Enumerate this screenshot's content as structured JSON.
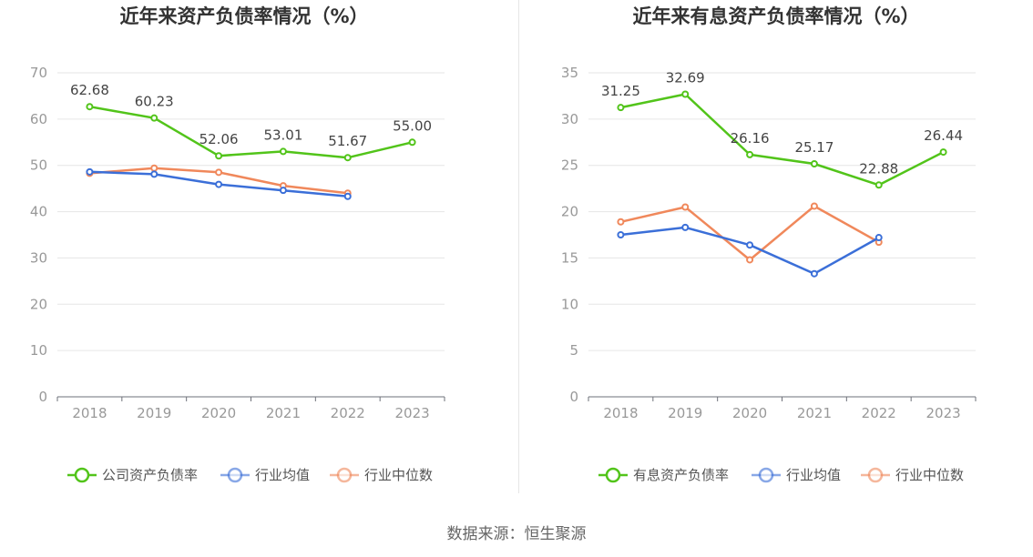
{
  "source_label": "数据来源：恒生聚源",
  "colors": {
    "company": "#52c41a",
    "avg": "#3b6fd8",
    "median": "#f0885b"
  },
  "chart_data": [
    {
      "type": "line",
      "title": "近年来资产负债率情况（%）",
      "x": [
        "2018",
        "2019",
        "2020",
        "2021",
        "2022",
        "2023"
      ],
      "ylim": [
        0,
        70
      ],
      "yticks": [
        0,
        10,
        20,
        30,
        40,
        50,
        60,
        70
      ],
      "grid": true,
      "legend_position": "bottom",
      "series": [
        {
          "name": "公司资产负债率",
          "color": "#52c41a",
          "labels": true,
          "values": [
            62.68,
            60.23,
            52.06,
            53.01,
            51.67,
            55.0
          ],
          "value_labels": [
            "62.68",
            "60.23",
            "52.06",
            "53.01",
            "51.67",
            "55.00"
          ]
        },
        {
          "name": "行业均值",
          "color": "#3b6fd8",
          "labels": false,
          "values": [
            48.6,
            48.1,
            45.9,
            44.6,
            43.3,
            null
          ]
        },
        {
          "name": "行业中位数",
          "color": "#f0885b",
          "labels": false,
          "values": [
            48.3,
            49.4,
            48.5,
            45.6,
            44.0,
            null
          ]
        }
      ]
    },
    {
      "type": "line",
      "title": "近年来有息资产负债率情况（%）",
      "x": [
        "2018",
        "2019",
        "2020",
        "2021",
        "2022",
        "2023"
      ],
      "ylim": [
        0,
        35
      ],
      "yticks": [
        0,
        5,
        10,
        15,
        20,
        25,
        30,
        35
      ],
      "grid": true,
      "legend_position": "bottom",
      "series": [
        {
          "name": "有息资产负债率",
          "color": "#52c41a",
          "labels": true,
          "values": [
            31.25,
            32.69,
            26.16,
            25.17,
            22.88,
            26.44
          ],
          "value_labels": [
            "31.25",
            "32.69",
            "26.16",
            "25.17",
            "22.88",
            "26.44"
          ]
        },
        {
          "name": "行业均值",
          "color": "#3b6fd8",
          "labels": false,
          "values": [
            17.5,
            18.3,
            16.4,
            13.3,
            17.2,
            null
          ]
        },
        {
          "name": "行业中位数",
          "color": "#f0885b",
          "labels": false,
          "values": [
            18.9,
            20.5,
            14.8,
            20.6,
            16.7,
            null
          ]
        }
      ]
    }
  ]
}
